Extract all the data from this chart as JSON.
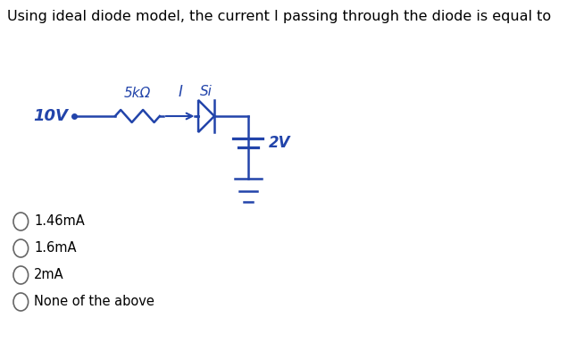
{
  "title": "Using ideal diode model, the current I passing through the diode is equal to",
  "title_fontsize": 11.5,
  "circuit": {
    "source_label": "10V",
    "resistor_label": "5kΩ",
    "current_label": "I",
    "diode_label": "Si",
    "battery_label": "2V",
    "color": "#2244aa"
  },
  "options": [
    "1.46mA",
    "1.6mA",
    "2mA",
    "None of the above"
  ],
  "bg_color": "#ffffff",
  "text_color": "#000000",
  "option_fontsize": 10.5,
  "title_color": "#000000"
}
